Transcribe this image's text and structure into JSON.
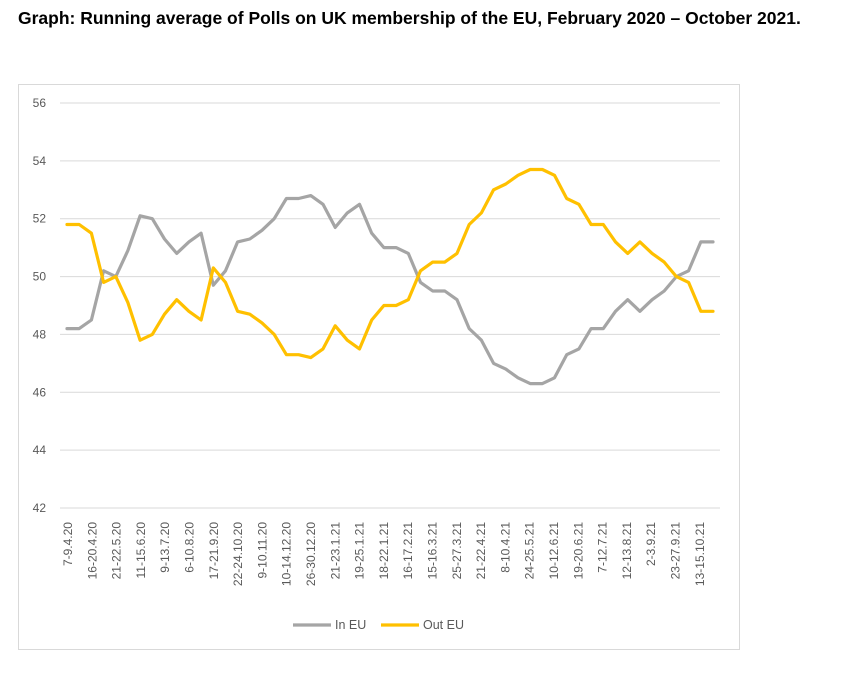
{
  "title": "Graph: Running average of Polls on UK membership of the EU, February 2020 – October 2021.",
  "colors": {
    "in_eu": "#A5A5A5",
    "out_eu": "#FFC000",
    "grid": "#D9D9D9",
    "text": "#595959"
  },
  "chart_data": {
    "type": "line",
    "title": "Graph: Running average of Polls on UK membership of the EU, February 2020 – October 2021.",
    "xlabel": "",
    "ylabel": "",
    "ylim": [
      42,
      56
    ],
    "yticks": [
      42,
      44,
      46,
      48,
      50,
      52,
      54,
      56
    ],
    "grid": true,
    "legend": "bottom",
    "x_tick_labels": [
      "7-9.4.20",
      "16-20.4.20",
      "21-22.5.20",
      "11-15.6.20",
      "9-13.7.20",
      "6-10.8.20",
      "17-21.9.20",
      "22-24.10.20",
      "9-10.11.20",
      "10-14.12.20",
      "26-30.12.20",
      "21-23.1.21",
      "19-25.1.21",
      "18-22.1.21",
      "16-17.2.21",
      "15-16.3.21",
      "25-27.3.21",
      "21-22.4.21",
      "8-10.4.21",
      "24-25.5.21",
      "10-12.6.21",
      "19-20.6.21",
      "7-12.7.21",
      "12-13.8.21",
      "2-3.9.21",
      "23-27.9.21",
      "13-15.10.21"
    ],
    "series": [
      {
        "name": "In EU",
        "color": "#A5A5A5",
        "values": [
          48.2,
          48.2,
          48.5,
          50.2,
          50.0,
          50.9,
          52.1,
          52.0,
          51.3,
          50.8,
          51.2,
          51.5,
          49.7,
          50.2,
          51.2,
          51.3,
          51.6,
          52.0,
          52.7,
          52.7,
          52.8,
          52.5,
          51.7,
          52.2,
          52.5,
          51.5,
          51.0,
          51.0,
          50.8,
          49.8,
          49.5,
          49.5,
          49.2,
          48.2,
          47.8,
          47.0,
          46.8,
          46.5,
          46.3,
          46.3,
          46.5,
          47.3,
          47.5,
          48.2,
          48.2,
          48.8,
          49.2,
          48.8,
          49.2,
          49.5,
          50.0,
          50.2,
          51.2,
          51.2
        ]
      },
      {
        "name": "Out EU",
        "color": "#FFC000",
        "values": [
          51.8,
          51.8,
          51.5,
          49.8,
          50.0,
          49.1,
          47.8,
          48.0,
          48.7,
          49.2,
          48.8,
          48.5,
          50.3,
          49.8,
          48.8,
          48.7,
          48.4,
          48.0,
          47.3,
          47.3,
          47.2,
          47.5,
          48.3,
          47.8,
          47.5,
          48.5,
          49.0,
          49.0,
          49.2,
          50.2,
          50.5,
          50.5,
          50.8,
          51.8,
          52.2,
          53.0,
          53.2,
          53.5,
          53.7,
          53.7,
          53.5,
          52.7,
          52.5,
          51.8,
          51.8,
          51.2,
          50.8,
          51.2,
          50.8,
          50.5,
          50.0,
          49.8,
          48.8,
          48.8
        ]
      }
    ]
  }
}
